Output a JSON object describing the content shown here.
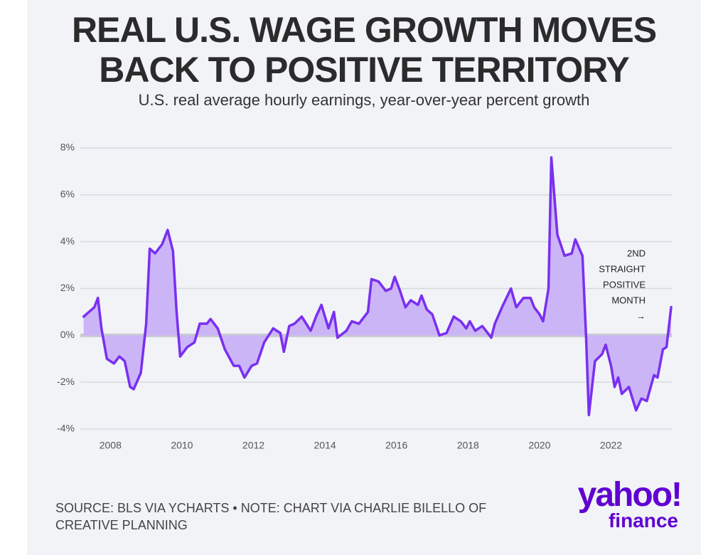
{
  "chart_data": {
    "type": "area",
    "title": "REAL U.S. WAGE GROWTH MOVES BACK TO POSITIVE TERRITORY",
    "subtitle": "U.S. real average hourly earnings, year-over-year percent growth",
    "x": [
      2007.25,
      2007.4,
      2007.55,
      2007.65,
      2007.75,
      2007.9,
      2008.1,
      2008.25,
      2008.4,
      2008.55,
      2008.65,
      2008.85,
      2009.0,
      2009.1,
      2009.25,
      2009.45,
      2009.6,
      2009.75,
      2009.85,
      2009.95,
      2010.15,
      2010.35,
      2010.5,
      2010.7,
      2010.8,
      2011.0,
      2011.2,
      2011.45,
      2011.6,
      2011.75,
      2011.95,
      2012.1,
      2012.3,
      2012.55,
      2012.75,
      2012.85,
      2013.0,
      2013.15,
      2013.35,
      2013.6,
      2013.75,
      2013.9,
      2014.1,
      2014.25,
      2014.35,
      2014.6,
      2014.75,
      2014.95,
      2015.2,
      2015.3,
      2015.5,
      2015.7,
      2015.85,
      2015.95,
      2016.1,
      2016.25,
      2016.4,
      2016.6,
      2016.7,
      2016.85,
      2017.0,
      2017.2,
      2017.4,
      2017.6,
      2017.8,
      2017.95,
      2018.05,
      2018.2,
      2018.4,
      2018.55,
      2018.65,
      2018.75,
      2018.95,
      2019.2,
      2019.35,
      2019.55,
      2019.75,
      2019.85,
      2020.0,
      2020.1,
      2020.25,
      2020.33,
      2020.5,
      2020.7,
      2020.9,
      2021.0,
      2021.2,
      2021.3,
      2021.38,
      2021.55,
      2021.75,
      2021.85,
      2022.0,
      2022.1,
      2022.2,
      2022.3,
      2022.5,
      2022.7,
      2022.85,
      2023.0,
      2023.2,
      2023.3,
      2023.45,
      2023.55,
      2023.68
    ],
    "values": [
      0.8,
      1.0,
      1.2,
      1.6,
      0.3,
      -1.0,
      -1.2,
      -0.9,
      -1.1,
      -2.2,
      -2.3,
      -1.6,
      0.5,
      3.7,
      3.5,
      3.9,
      4.5,
      3.6,
      1.0,
      -0.9,
      -0.5,
      -0.3,
      0.5,
      0.5,
      0.7,
      0.3,
      -0.6,
      -1.3,
      -1.3,
      -1.8,
      -1.3,
      -1.2,
      -0.3,
      0.3,
      0.1,
      -0.7,
      0.4,
      0.5,
      0.8,
      0.2,
      0.8,
      1.3,
      0.3,
      1.0,
      -0.1,
      0.2,
      0.6,
      0.5,
      1.0,
      2.4,
      2.3,
      1.9,
      2.0,
      2.5,
      1.9,
      1.2,
      1.5,
      1.3,
      1.7,
      1.1,
      0.9,
      0.0,
      0.1,
      0.8,
      0.6,
      0.3,
      0.6,
      0.2,
      0.4,
      0.1,
      -0.1,
      0.5,
      1.2,
      2.0,
      1.2,
      1.6,
      1.6,
      1.2,
      0.9,
      0.6,
      2.0,
      7.6,
      4.3,
      3.4,
      3.5,
      4.1,
      3.4,
      0.0,
      -3.4,
      -1.1,
      -0.8,
      -0.4,
      -1.3,
      -2.2,
      -1.8,
      -2.5,
      -2.2,
      -3.2,
      -2.7,
      -2.8,
      -1.7,
      -1.8,
      -0.6,
      -0.5,
      1.2
    ],
    "color": "#7a2ff0",
    "fill_color": "#cbb5f7",
    "xlim": [
      2007.0,
      2023.7
    ],
    "xticks": [
      2008,
      2010,
      2012,
      2014,
      2016,
      2018,
      2020,
      2022
    ],
    "ylim": [
      -4,
      8
    ],
    "yticks": [
      {
        "value": -4,
        "label": "-4%"
      },
      {
        "value": -2,
        "label": "-2%"
      },
      {
        "value": 0,
        "label": "0%"
      },
      {
        "value": 2,
        "label": "2%"
      },
      {
        "value": 4,
        "label": "4%"
      },
      {
        "value": 6,
        "label": "6%"
      },
      {
        "value": 8,
        "label": "8%"
      }
    ],
    "grid": true,
    "annotation": [
      "2ND",
      "STRAIGHT",
      "POSITIVE",
      "MONTH",
      "→"
    ],
    "source": "SOURCE: BLS VIA YCHARTS • NOTE: CHART VIA CHARLIE BILELLO OF CREATIVE PLANNING",
    "logo": "yahoo!",
    "logo_sub": "finance"
  }
}
